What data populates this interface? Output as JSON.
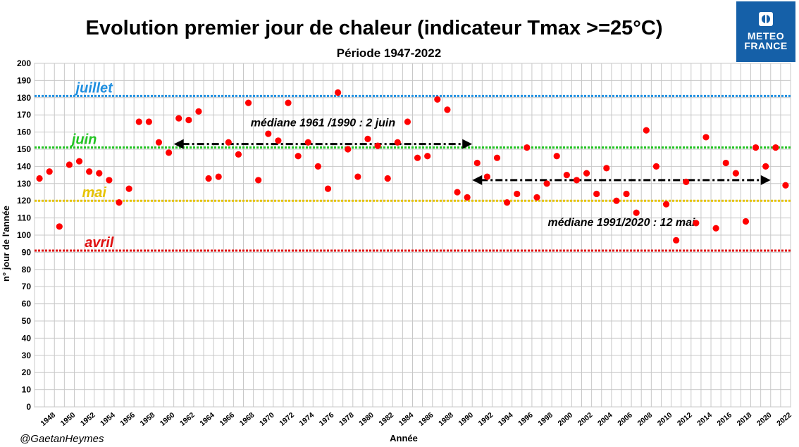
{
  "logo": {
    "line1": "METEO",
    "line2": "FRANCE"
  },
  "credit": "@GaetanHeymes",
  "chart_data": {
    "type": "scatter",
    "title": "Evolution premier jour de chaleur (indicateur Tmax >=25°C)",
    "subtitle": "Période 1947-2022",
    "xlabel": "Année",
    "ylabel": "n° jour de l'année",
    "xlim": [
      1947,
      2022
    ],
    "ylim": [
      0,
      200
    ],
    "yticks": [
      0,
      10,
      20,
      30,
      40,
      50,
      60,
      70,
      80,
      90,
      100,
      110,
      120,
      130,
      140,
      150,
      160,
      170,
      180,
      190,
      200
    ],
    "xticks": [
      1948,
      1950,
      1952,
      1954,
      1956,
      1958,
      1960,
      1962,
      1964,
      1966,
      1968,
      1970,
      1972,
      1974,
      1976,
      1978,
      1980,
      1982,
      1984,
      1986,
      1988,
      1990,
      1992,
      1994,
      1996,
      1998,
      2000,
      2002,
      2004,
      2006,
      2008,
      2010,
      2012,
      2014,
      2016,
      2018,
      2020,
      2022
    ],
    "grid": true,
    "marker_color": "#ff0000",
    "x": [
      1947,
      1948,
      1949,
      1950,
      1951,
      1952,
      1953,
      1954,
      1955,
      1956,
      1957,
      1958,
      1959,
      1960,
      1961,
      1962,
      1963,
      1964,
      1965,
      1966,
      1967,
      1968,
      1969,
      1970,
      1971,
      1972,
      1973,
      1974,
      1975,
      1976,
      1977,
      1978,
      1979,
      1980,
      1981,
      1982,
      1983,
      1984,
      1985,
      1986,
      1987,
      1988,
      1989,
      1990,
      1991,
      1992,
      1993,
      1994,
      1995,
      1996,
      1997,
      1998,
      1999,
      2000,
      2001,
      2002,
      2003,
      2004,
      2005,
      2006,
      2007,
      2008,
      2009,
      2010,
      2011,
      2012,
      2013,
      2014,
      2015,
      2016,
      2017,
      2018,
      2019,
      2020,
      2021,
      2022
    ],
    "y": [
      133,
      137,
      105,
      141,
      143,
      137,
      136,
      132,
      119,
      127,
      166,
      166,
      154,
      148,
      168,
      167,
      172,
      133,
      134,
      154,
      147,
      177,
      132,
      159,
      155,
      177,
      146,
      154,
      140,
      127,
      183,
      150,
      134,
      156,
      152,
      133,
      154,
      166,
      145,
      146,
      179,
      173,
      125,
      122,
      142,
      134,
      145,
      119,
      124,
      151,
      122,
      130,
      146,
      135,
      132,
      136,
      124,
      139,
      120,
      124,
      113,
      161,
      140,
      118,
      97,
      131,
      107,
      157,
      104,
      142,
      136,
      108,
      151,
      140,
      151,
      129
    ],
    "reference_lines": [
      {
        "label": "juillet",
        "y": 181,
        "color": "#1f8fe0"
      },
      {
        "label": "juin",
        "y": 151,
        "color": "#22c422"
      },
      {
        "label": "mai",
        "y": 120,
        "color": "#e6c300"
      },
      {
        "label": "avril",
        "y": 91,
        "color": "#e01010"
      }
    ],
    "annotations": [
      {
        "text": "médiane 1961 /1990 : 2 juin",
        "x_start": 1960.5,
        "x_end": 1990.5,
        "y": 153
      },
      {
        "text": "médiane 1991/2020 : 12 mai",
        "x_start": 1990.5,
        "x_end": 2020.5,
        "y": 132
      }
    ]
  }
}
